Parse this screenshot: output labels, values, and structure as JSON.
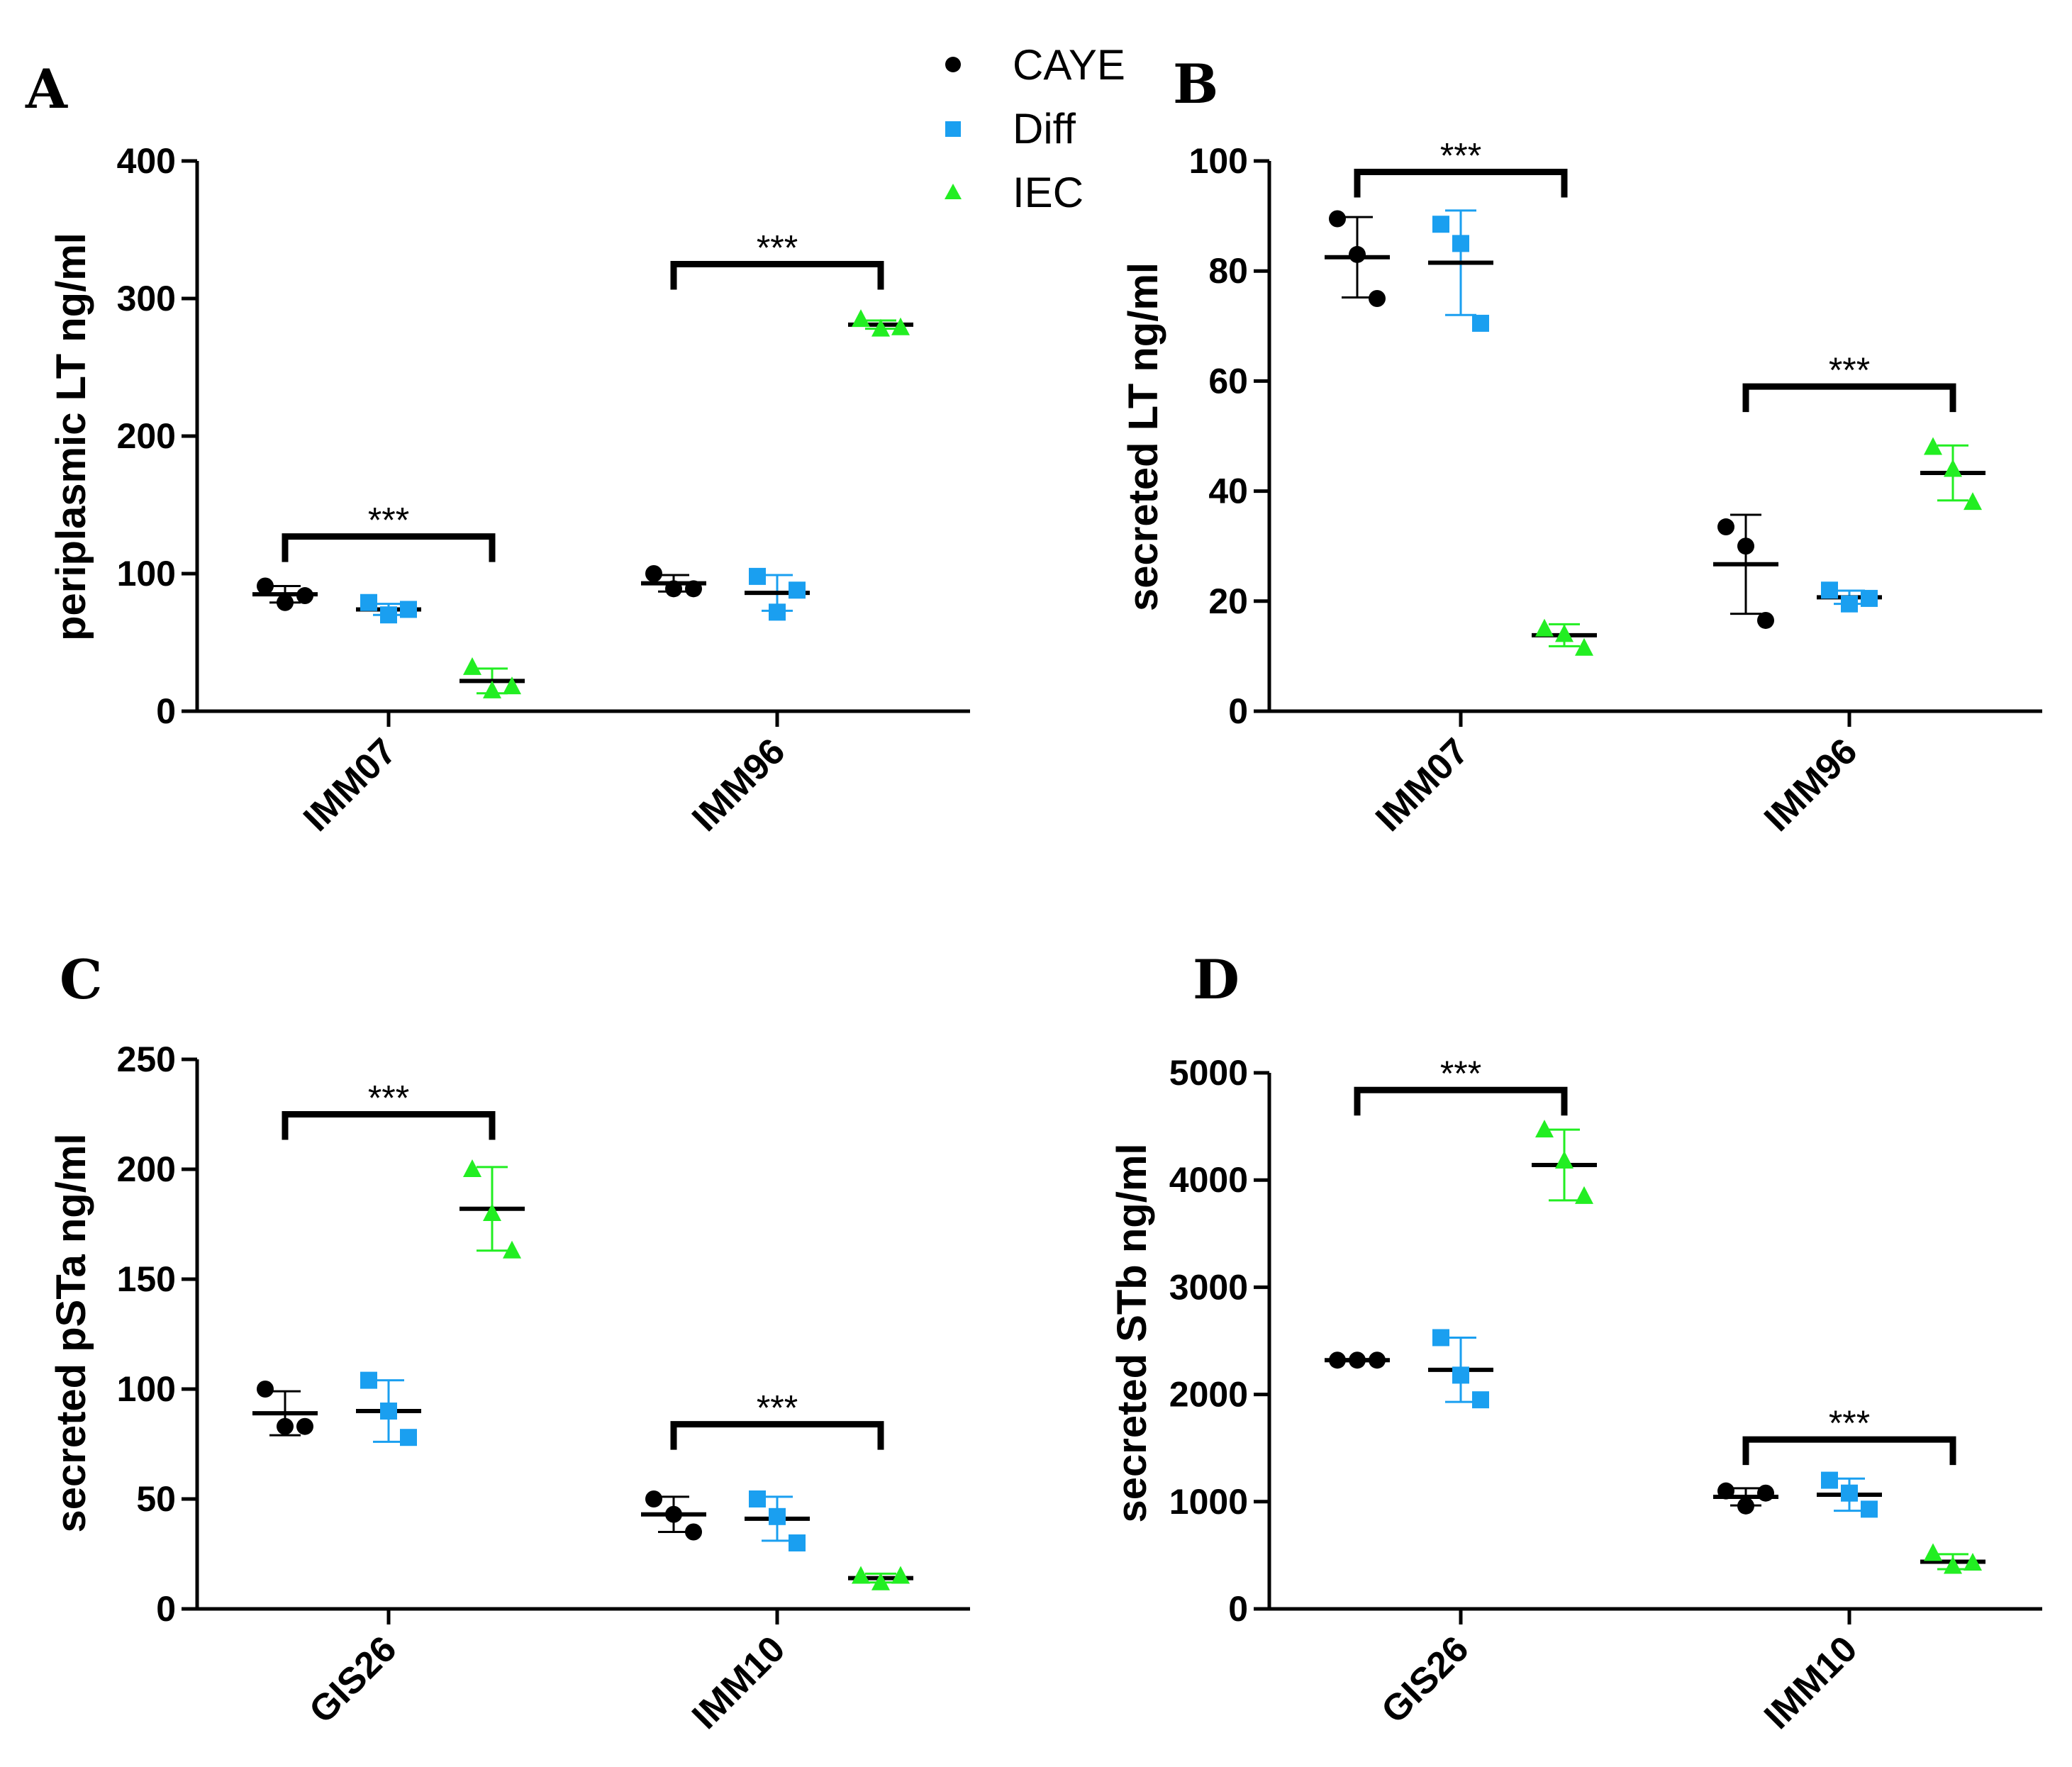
{
  "legend": [
    {
      "name": "CAYE",
      "color": "#000000",
      "marker": "circle"
    },
    {
      "name": "Diff",
      "color": "#1a9ff0",
      "marker": "square"
    },
    {
      "name": "IEC",
      "color": "#22ee22",
      "marker": "triangle"
    }
  ],
  "chart_data": [
    {
      "panel": "A",
      "type": "scatter",
      "ylabel": "periplasmic LT ng/ml",
      "ylim": [
        0,
        400
      ],
      "yticks": [
        0,
        100,
        200,
        300,
        400
      ],
      "categories": [
        "IMM07",
        "IMM96"
      ],
      "series": [
        {
          "name": "CAYE",
          "values": [
            [
              91,
              79,
              84
            ],
            [
              100,
              89,
              89
            ]
          ],
          "mean": [
            85,
            93
          ],
          "sd": [
            6,
            6
          ]
        },
        {
          "name": "Diff",
          "values": [
            [
              79,
              70,
              74
            ],
            [
              98,
              72,
              88
            ]
          ],
          "mean": [
            74,
            86
          ],
          "sd": [
            4,
            13
          ]
        },
        {
          "name": "IEC",
          "values": [
            [
              32,
              15,
              18
            ],
            [
              285,
              278,
              279
            ]
          ],
          "mean": [
            22,
            281
          ],
          "sd": [
            9,
            3
          ]
        }
      ],
      "significance": [
        {
          "category": "IMM07",
          "from": "CAYE",
          "to": "IEC",
          "label": "***",
          "y": 127
        },
        {
          "category": "IMM96",
          "from": "CAYE",
          "to": "IEC",
          "label": "***",
          "y": 325
        }
      ]
    },
    {
      "panel": "B",
      "type": "scatter",
      "ylabel": "secreted LT ng/ml",
      "ylim": [
        0,
        100
      ],
      "yticks": [
        0,
        20,
        40,
        60,
        80,
        100
      ],
      "categories": [
        "IMM07",
        "IMM96"
      ],
      "series": [
        {
          "name": "CAYE",
          "values": [
            [
              89.5,
              83,
              75
            ],
            [
              33.5,
              30,
              16.5
            ]
          ],
          "mean": [
            82.5,
            26.7
          ],
          "sd": [
            7.3,
            9
          ]
        },
        {
          "name": "Diff",
          "values": [
            [
              88.5,
              85,
              70.5
            ],
            [
              22,
              19.5,
              20.5
            ]
          ],
          "mean": [
            81.5,
            20.7
          ],
          "sd": [
            9.5,
            1.2
          ]
        },
        {
          "name": "IEC",
          "values": [
            [
              15,
              14,
              11.5
            ],
            [
              48,
              44,
              38
            ]
          ],
          "mean": [
            13.8,
            43.3
          ],
          "sd": [
            2,
            5
          ]
        }
      ],
      "significance": [
        {
          "category": "IMM07",
          "from": "CAYE",
          "to": "IEC",
          "label": "***",
          "y": 98
        },
        {
          "category": "IMM96",
          "from": "CAYE",
          "to": "IEC",
          "label": "***",
          "y": 59
        }
      ]
    },
    {
      "panel": "C",
      "type": "scatter",
      "ylabel": "secreted pSTa ng/ml",
      "ylim": [
        0,
        250
      ],
      "yticks": [
        0,
        50,
        100,
        150,
        200,
        250
      ],
      "categories": [
        "GIS26",
        "IMM10"
      ],
      "series": [
        {
          "name": "CAYE",
          "values": [
            [
              100,
              83,
              83
            ],
            [
              50,
              43,
              35
            ]
          ],
          "mean": [
            89,
            43
          ],
          "sd": [
            10,
            8
          ]
        },
        {
          "name": "Diff",
          "values": [
            [
              104,
              90,
              78
            ],
            [
              50,
              42,
              30
            ]
          ],
          "mean": [
            90,
            41
          ],
          "sd": [
            14,
            10
          ]
        },
        {
          "name": "IEC",
          "values": [
            [
              200,
              180,
              163
            ],
            [
              15,
              12,
              15
            ]
          ],
          "mean": [
            182,
            14
          ],
          "sd": [
            19,
            2
          ]
        }
      ],
      "significance": [
        {
          "category": "GIS26",
          "from": "CAYE",
          "to": "IEC",
          "label": "***",
          "y": 225
        },
        {
          "category": "IMM10",
          "from": "CAYE",
          "to": "IEC",
          "label": "***",
          "y": 84
        }
      ]
    },
    {
      "panel": "D",
      "type": "scatter",
      "ylabel": "secreted STb ng/ml",
      "ylim": [
        0,
        5000
      ],
      "yticks": [
        0,
        1000,
        2000,
        3000,
        4000,
        5000
      ],
      "categories": [
        "GIS26",
        "IMM10"
      ],
      "series": [
        {
          "name": "CAYE",
          "values": [
            [
              2320,
              2320,
              2320
            ],
            [
              1100,
              960,
              1080
            ]
          ],
          "mean": [
            2320,
            1045
          ],
          "sd": [
            10,
            80
          ]
        },
        {
          "name": "Diff",
          "values": [
            [
              2530,
              2180,
              1950
            ],
            [
              1200,
              1080,
              930
            ]
          ],
          "mean": [
            2230,
            1065
          ],
          "sd": [
            300,
            150
          ]
        },
        {
          "name": "IEC",
          "values": [
            [
              4470,
              4180,
              3850
            ],
            [
              520,
              400,
              430
            ]
          ],
          "mean": [
            4140,
            440
          ],
          "sd": [
            330,
            70
          ]
        }
      ],
      "significance": [
        {
          "category": "GIS26",
          "from": "CAYE",
          "to": "IEC",
          "label": "***",
          "y": 4840
        },
        {
          "category": "IMM10",
          "from": "CAYE",
          "to": "IEC",
          "label": "***",
          "y": 1580
        }
      ]
    }
  ]
}
